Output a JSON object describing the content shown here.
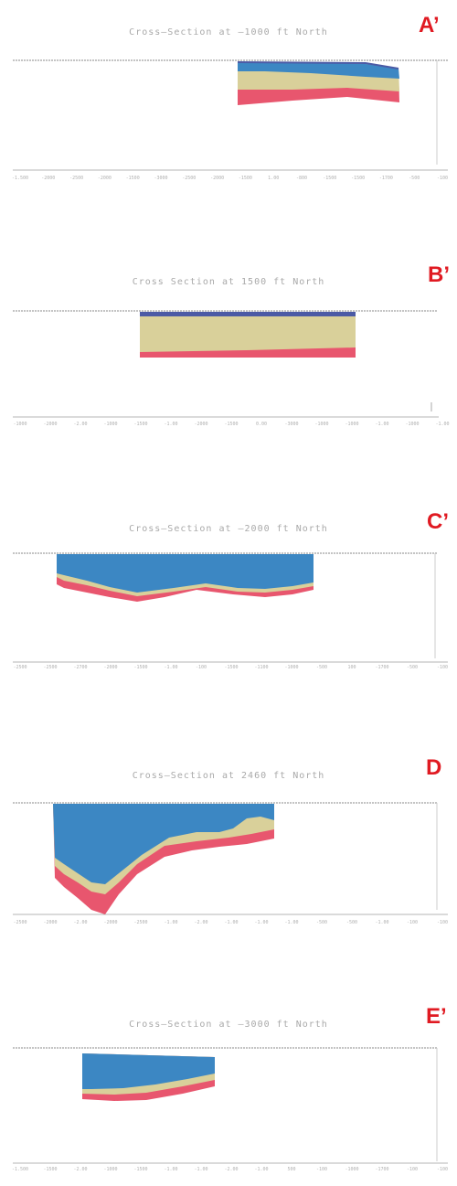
{
  "colors": {
    "water": "#3c87c3",
    "sand": "#d9d09a",
    "clay": "#e8566e",
    "dark": "#4b5aa5",
    "frame": "#8a8a8a",
    "tick": "#c5c5c5",
    "title": "#a9a9a9",
    "letter": "#e01a22"
  },
  "sections": [
    {
      "id": "A",
      "title": "Cross–Section at –1000 ft North",
      "letter": "A’",
      "axis": [
        "-1.500",
        "-2000",
        "-2500",
        "-2000",
        "-1500",
        "-3000",
        "-2500",
        "-2000",
        "-1500",
        "1.00",
        "-800",
        "-1500",
        "-1500",
        "-1700",
        "-500",
        "-100"
      ]
    },
    {
      "id": "B",
      "title": "Cross Section at 1500 ft North",
      "letter": "B’",
      "axis": [
        "-1000",
        "-2000",
        "-2.00",
        "-1000",
        "-1500",
        "-1.00",
        "-2000",
        "-1500",
        "0.00",
        "-3000",
        "-1000",
        "-1000",
        "-1.00",
        "-1000",
        "-1.00"
      ]
    },
    {
      "id": "C",
      "title": "Cross–Section at –2000 ft North",
      "letter": "C’",
      "axis": [
        "-2500",
        "-2500",
        "-2700",
        "-2000",
        "-1500",
        "-1.00",
        "-100",
        "-1500",
        "-1100",
        "-1000",
        "-500",
        "100",
        "-1700",
        "-500",
        "-100"
      ]
    },
    {
      "id": "D",
      "title": "Cross–Section at 2460 ft North",
      "letter": "D",
      "axis": [
        "-2500",
        "-2000",
        "-2.00",
        "-2000",
        "-2500",
        "-1.00",
        "-2.00",
        "-1.00",
        "-1.00",
        "-1.00",
        "-500",
        "-500",
        "-1.00",
        "-100",
        "-100"
      ]
    },
    {
      "id": "E",
      "title": "Cross–Section at –3000 ft North",
      "letter": "E’",
      "axis": [
        "-1.500",
        "-1500",
        "-2.00",
        "-1000",
        "-1500",
        "-1.00",
        "-1.00",
        "-2.00",
        "-1.00",
        "500",
        "-100",
        "-1000",
        "-1700",
        "-100",
        "-100"
      ]
    }
  ]
}
